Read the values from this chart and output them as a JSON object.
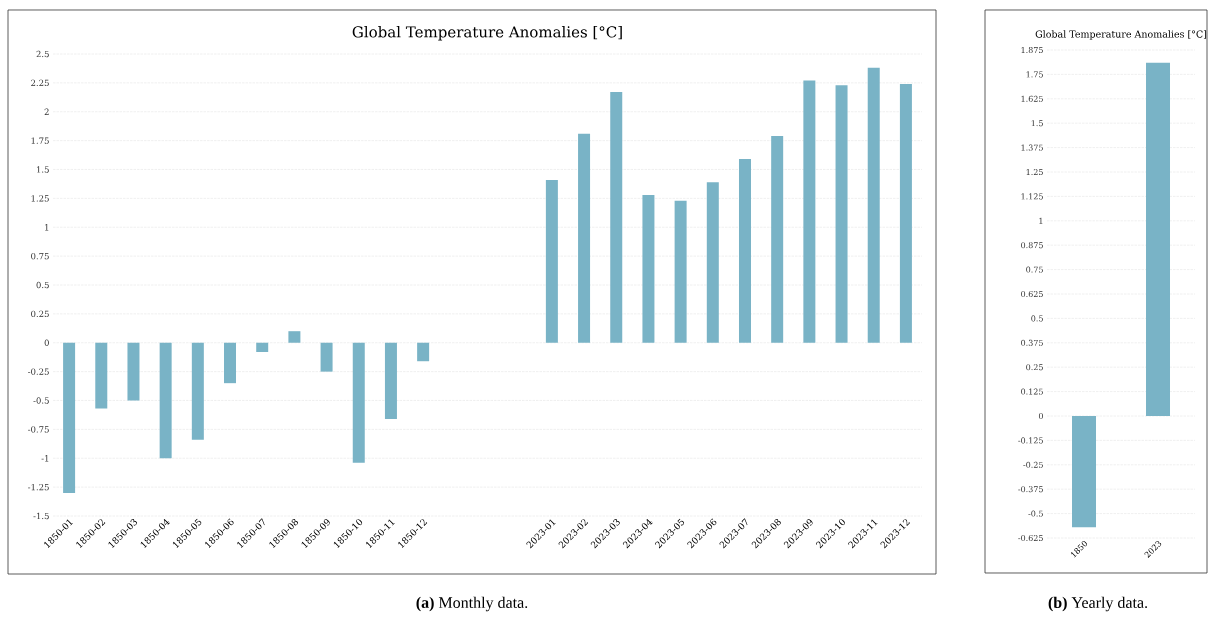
{
  "chart_data": [
    {
      "type": "bar",
      "title": "Global Temperature Anomalies [°C]",
      "categories": [
        "1850-01",
        "1850-02",
        "1850-03",
        "1850-04",
        "1850-05",
        "1850-06",
        "1850-07",
        "1850-08",
        "1850-09",
        "1850-10",
        "1850-11",
        "1850-12",
        null,
        null,
        null,
        "2023-01",
        "2023-02",
        "2023-03",
        "2023-04",
        "2023-05",
        "2023-06",
        "2023-07",
        "2023-08",
        "2023-09",
        "2023-10",
        "2023-11",
        "2023-12"
      ],
      "values": [
        -1.3,
        -0.57,
        -0.5,
        -1.0,
        -0.84,
        -0.35,
        -0.08,
        0.1,
        -0.25,
        -1.04,
        -0.66,
        -0.16,
        null,
        null,
        null,
        1.41,
        1.81,
        2.17,
        1.28,
        1.23,
        1.39,
        1.59,
        1.79,
        2.27,
        2.23,
        2.38,
        2.24
      ],
      "color": "#79b3c6",
      "ylim": [
        -1.5,
        2.5
      ],
      "yticks": [
        -1.5,
        -1.25,
        -1,
        -0.75,
        -0.5,
        -0.25,
        0,
        0.25,
        0.5,
        0.75,
        1,
        1.25,
        1.5,
        1.75,
        2,
        2.25,
        2.5
      ],
      "grid": "y",
      "annotations": [
        "**(a)** Monthly data."
      ]
    },
    {
      "type": "bar",
      "title": "Global Temperature Anomalies [°C]",
      "categories": [
        "1850",
        "2023"
      ],
      "values": [
        -0.57,
        1.81
      ],
      "color": "#79b3c6",
      "ylim": [
        -0.625,
        1.875
      ],
      "yticks": [
        -0.625,
        -0.5,
        -0.375,
        -0.25,
        -0.125,
        0,
        0.125,
        0.25,
        0.375,
        0.5,
        0.625,
        0.75,
        0.875,
        1,
        1.125,
        1.25,
        1.375,
        1.5,
        1.625,
        1.75,
        1.875
      ],
      "grid": "y",
      "annotations": [
        "**(b)** Yearly data."
      ]
    }
  ]
}
